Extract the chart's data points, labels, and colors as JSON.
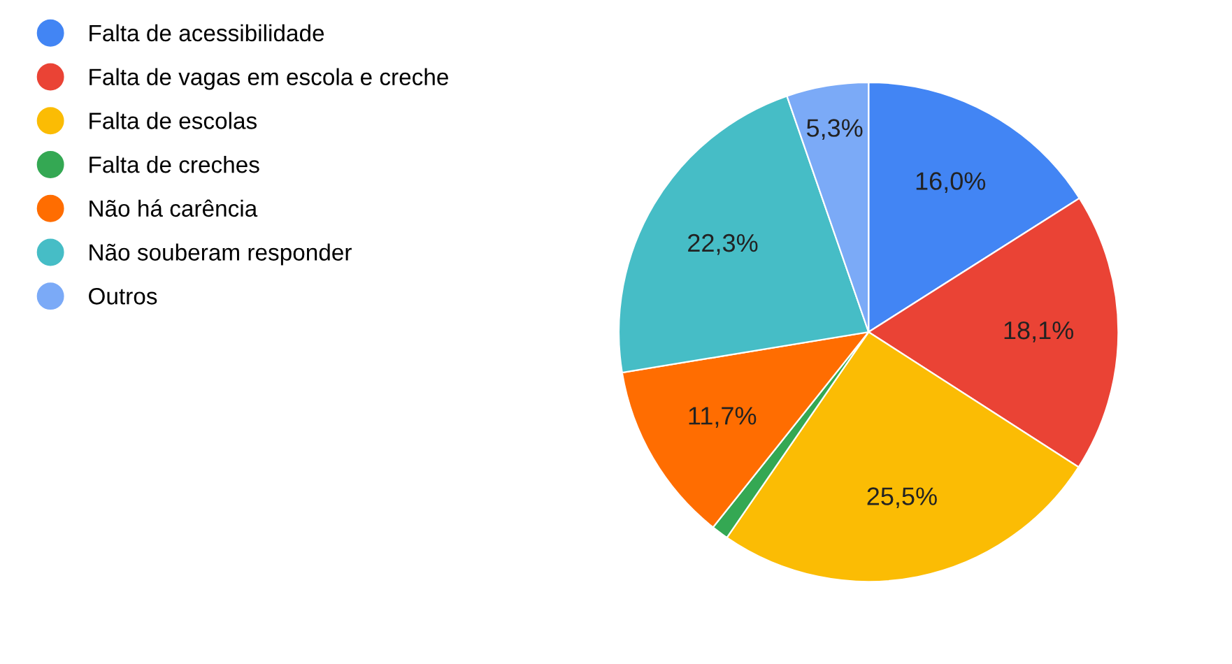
{
  "chart_data": {
    "type": "pie",
    "categories": [
      "Falta de acessibilidade",
      "Falta de vagas em escola e creche",
      "Falta de escolas",
      "Falta de creches",
      "Não há carência",
      "Não souberam responder",
      "Outros"
    ],
    "values": [
      16.0,
      18.1,
      25.5,
      1.1,
      11.7,
      22.3,
      5.3
    ],
    "value_labels": [
      "16,0%",
      "18,1%",
      "25,5%",
      null,
      "11,7%",
      "22,3%",
      "5,3%"
    ],
    "colors": [
      "#4285f4",
      "#ea4335",
      "#fbbc04",
      "#34a853",
      "#ff6d01",
      "#46bdc6",
      "#7baaf7"
    ],
    "legend": "top left"
  }
}
